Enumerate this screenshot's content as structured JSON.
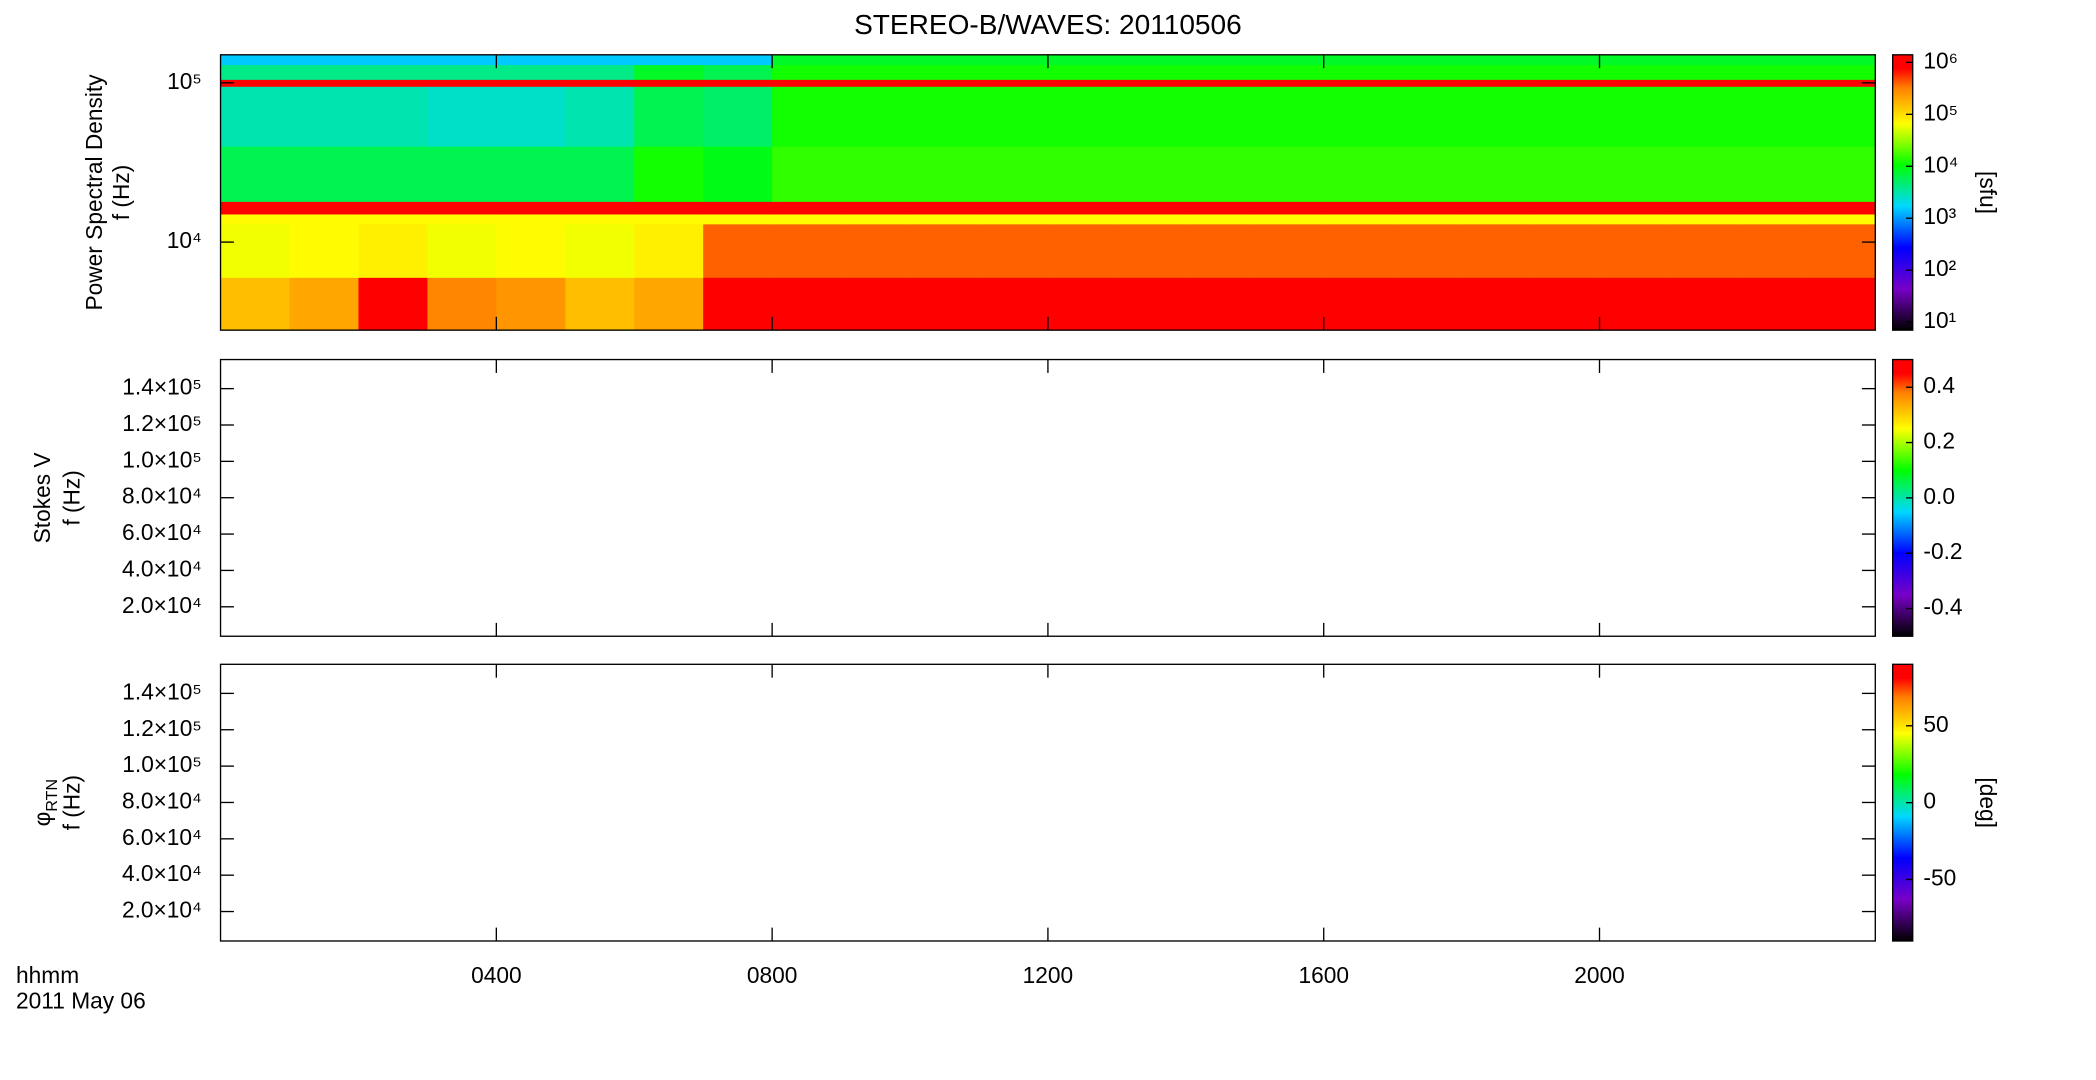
{
  "title": "STEREO-B/WAVES: 20110506",
  "footer": {
    "units": "hhmm",
    "date": "2011 May 06"
  },
  "colormap": {
    "stops": [
      0,
      0.15,
      0.3,
      0.45,
      0.6,
      0.75,
      0.88,
      0.95,
      1
    ],
    "colors": [
      "#000000",
      "#7800c8",
      "#0000ff",
      "#00d8ff",
      "#00ff00",
      "#ffff00",
      "#ff8000",
      "#ff0000",
      "#ff0000"
    ]
  },
  "chart_data": [
    {
      "type": "heatmap",
      "ylabel": [
        "Power Spectral Density",
        "f (Hz)"
      ],
      "clabel": "[sfu]",
      "xlim": [
        0,
        24
      ],
      "xticks": [
        {
          "value": 4,
          "label": "0400"
        },
        {
          "value": 8,
          "label": "0800"
        },
        {
          "value": 12,
          "label": "1200"
        },
        {
          "value": 16,
          "label": "1600"
        },
        {
          "value": 20,
          "label": "2000"
        }
      ],
      "ylog": true,
      "ylim": [
        2800,
        150000
      ],
      "yticks": [
        {
          "value": 10000,
          "label": "10⁴"
        },
        {
          "value": 100000,
          "label": "10⁵"
        }
      ],
      "clog": true,
      "clim": [
        7,
        1400000
      ],
      "cticks": [
        {
          "value": 10,
          "label": "10¹"
        },
        {
          "value": 100,
          "label": "10²"
        },
        {
          "value": 1000,
          "label": "10³"
        },
        {
          "value": 10000,
          "label": "10⁴"
        },
        {
          "value": 100000,
          "label": "10⁵"
        },
        {
          "value": 1000000,
          "label": "10⁶"
        }
      ],
      "x_edges": [
        0,
        1,
        2,
        3,
        4,
        5,
        6,
        7,
        8,
        9,
        10,
        11,
        12,
        13,
        14,
        15,
        16,
        17,
        18,
        19,
        20,
        21,
        22,
        23,
        24
      ],
      "y_edges": [
        2800,
        6000,
        13000,
        15000,
        18000,
        40000,
        95000,
        105000,
        130000,
        150000
      ],
      "z": [
        [
          150000,
          200000,
          900000,
          300000,
          250000,
          150000,
          200000,
          800000,
          900000,
          900000,
          900000,
          900000,
          900000,
          900000,
          900000,
          900000,
          900000,
          900000,
          900000,
          900000,
          900000,
          900000,
          900000,
          900000
        ],
        [
          60000,
          70000,
          80000,
          60000,
          70000,
          60000,
          80000,
          400000,
          400000,
          400000,
          400000,
          400000,
          400000,
          400000,
          400000,
          400000,
          400000,
          400000,
          400000,
          400000,
          400000,
          400000,
          400000,
          400000
        ],
        [
          70000,
          70000,
          70000,
          70000,
          70000,
          70000,
          70000,
          70000,
          70000,
          70000,
          70000,
          70000,
          70000,
          70000,
          70000,
          70000,
          70000,
          70000,
          70000,
          70000,
          70000,
          70000,
          70000,
          70000
        ],
        [
          1000000,
          1000000,
          1000000,
          1000000,
          1000000,
          1000000,
          1000000,
          1000000,
          1000000,
          1000000,
          1000000,
          1000000,
          1000000,
          1000000,
          1000000,
          1000000,
          1000000,
          1000000,
          1000000,
          1000000,
          1000000,
          1000000,
          1000000,
          1000000
        ],
        [
          6000,
          6000,
          6000,
          6000,
          6000,
          6000,
          12000,
          9000,
          15000,
          15000,
          15000,
          15000,
          15000,
          15000,
          15000,
          15000,
          15000,
          15000,
          15000,
          15000,
          15000,
          15000,
          15000,
          15000
        ],
        [
          3000,
          3000,
          3000,
          2500,
          2500,
          3000,
          6000,
          5000,
          12000,
          12000,
          12000,
          12000,
          12000,
          12000,
          12000,
          12000,
          12000,
          12000,
          12000,
          12000,
          12000,
          12000,
          12000,
          12000
        ],
        [
          1000000,
          1000000,
          1000000,
          1000000,
          1000000,
          1000000,
          1000000,
          1000000,
          1000000,
          1000000,
          1000000,
          1000000,
          1000000,
          1000000,
          1000000,
          1000000,
          1000000,
          1000000,
          1000000,
          1000000,
          1000000,
          1000000,
          1000000,
          1000000
        ],
        [
          4000,
          4000,
          4000,
          4000,
          4000,
          4000,
          8000,
          6000,
          12000,
          12000,
          12000,
          12000,
          12000,
          12000,
          12000,
          12000,
          12000,
          12000,
          12000,
          12000,
          12000,
          12000,
          12000,
          12000
        ],
        [
          1500,
          1500,
          1500,
          1500,
          1500,
          1500,
          1500,
          1500,
          8000,
          8000,
          8000,
          8000,
          8000,
          8000,
          8000,
          8000,
          8000,
          8000,
          8000,
          8000,
          8000,
          8000,
          8000,
          8000
        ]
      ]
    },
    {
      "type": "heatmap",
      "ylabel": [
        "Stokes V",
        "f (Hz)"
      ],
      "xlim": [
        0,
        24
      ],
      "xticks": [
        {
          "value": 4,
          "label": "0400"
        },
        {
          "value": 8,
          "label": "0800"
        },
        {
          "value": 12,
          "label": "1200"
        },
        {
          "value": 16,
          "label": "1600"
        },
        {
          "value": 20,
          "label": "2000"
        }
      ],
      "ylim": [
        3800,
        156000
      ],
      "yticks": [
        {
          "value": 20000,
          "label": "2.0×10⁴"
        },
        {
          "value": 40000,
          "label": "4.0×10⁴"
        },
        {
          "value": 60000,
          "label": "6.0×10⁴"
        },
        {
          "value": 80000,
          "label": "8.0×10⁴"
        },
        {
          "value": 100000,
          "label": "1.0×10⁵"
        },
        {
          "value": 120000,
          "label": "1.2×10⁵"
        },
        {
          "value": 140000,
          "label": "1.4×10⁵"
        }
      ],
      "clim": [
        -0.5,
        0.5
      ],
      "cticks": [
        -0.4,
        -0.2,
        {
          "value": 0,
          "label": "0.0"
        },
        0.2,
        0.4
      ]
    },
    {
      "type": "heatmap",
      "ylabel": [
        "φ",
        "f (Hz)"
      ],
      "ylabel_sub": "RTN",
      "clabel": "[deg]",
      "xlim": [
        0,
        24
      ],
      "xticks": [
        {
          "value": 4,
          "label": "0400"
        },
        {
          "value": 8,
          "label": "0800"
        },
        {
          "value": 12,
          "label": "1200"
        },
        {
          "value": 16,
          "label": "1600"
        },
        {
          "value": 20,
          "label": "2000"
        }
      ],
      "ylim": [
        3800,
        156000
      ],
      "yticks": [
        {
          "value": 20000,
          "label": "2.0×10⁴"
        },
        {
          "value": 40000,
          "label": "4.0×10⁴"
        },
        {
          "value": 60000,
          "label": "6.0×10⁴"
        },
        {
          "value": 80000,
          "label": "8.0×10⁴"
        },
        {
          "value": 100000,
          "label": "1.0×10⁵"
        },
        {
          "value": 120000,
          "label": "1.2×10⁵"
        },
        {
          "value": 140000,
          "label": "1.4×10⁵"
        }
      ],
      "clim": [
        -90,
        90
      ],
      "cticks": [
        -50,
        0,
        50
      ]
    }
  ]
}
